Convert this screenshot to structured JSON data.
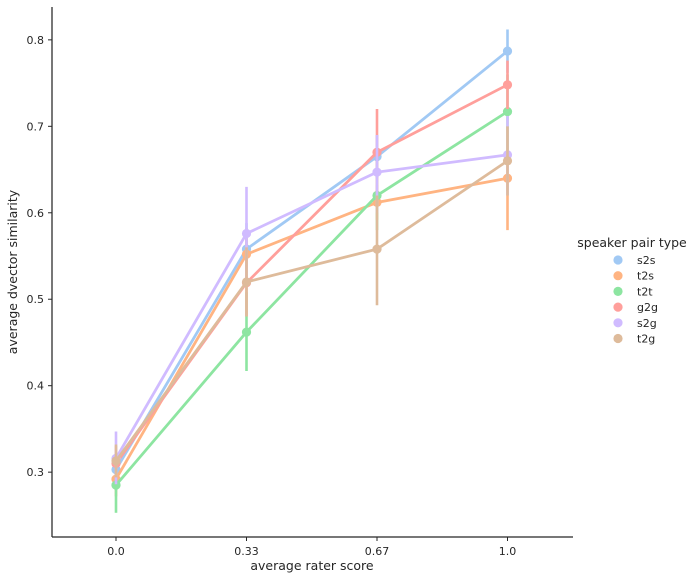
{
  "chart_data": {
    "type": "line",
    "categories": [
      "0.0",
      "0.33",
      "0.67",
      "1.0"
    ],
    "xlabel": "average rater score",
    "ylabel": "average dvector similarity",
    "ylim": [
      0.225,
      0.838
    ],
    "yticks": [
      0.3,
      0.4,
      0.5,
      0.6,
      0.7,
      0.8
    ],
    "yticklabels": [
      "0.3",
      "0.4",
      "0.5",
      "0.6",
      "0.7",
      "0.8"
    ],
    "grid": false,
    "legend": {
      "title": "speaker pair type",
      "placement": "center-right"
    },
    "series": [
      {
        "name": "s2s",
        "color": "#a1c9f4",
        "values": [
          0.303,
          0.558,
          0.665,
          0.787
        ],
        "ci": [
          [
            0.29,
            0.316
          ],
          [
            0.53,
            0.588
          ],
          [
            0.64,
            0.69
          ],
          [
            0.762,
            0.812
          ]
        ]
      },
      {
        "name": "t2s",
        "color": "#ffb482",
        "values": [
          0.292,
          0.552,
          0.612,
          0.64
        ],
        "ci": [
          [
            0.272,
            0.312
          ],
          [
            0.522,
            0.582
          ],
          [
            0.592,
            0.632
          ],
          [
            0.58,
            0.7
          ]
        ]
      },
      {
        "name": "t2t",
        "color": "#8de5a1",
        "values": [
          0.285,
          0.462,
          0.62,
          0.717
        ],
        "ci": [
          [
            0.253,
            0.316
          ],
          [
            0.417,
            0.508
          ],
          [
            0.58,
            0.66
          ],
          [
            0.67,
            0.76
          ]
        ]
      },
      {
        "name": "g2g",
        "color": "#ff9f9b",
        "values": [
          0.31,
          0.519,
          0.67,
          0.748
        ],
        "ci": [
          [
            0.292,
            0.33
          ],
          [
            0.48,
            0.56
          ],
          [
            0.622,
            0.72
          ],
          [
            0.72,
            0.776
          ]
        ]
      },
      {
        "name": "s2g",
        "color": "#d0bbff",
        "values": [
          0.316,
          0.576,
          0.647,
          0.667
        ],
        "ci": [
          [
            0.286,
            0.347
          ],
          [
            0.522,
            0.63
          ],
          [
            0.6,
            0.69
          ],
          [
            0.62,
            0.712
          ]
        ]
      },
      {
        "name": "t2g",
        "color": "#debb9b",
        "values": [
          0.313,
          0.52,
          0.558,
          0.66
        ],
        "ci": [
          [
            0.294,
            0.332
          ],
          [
            0.48,
            0.56
          ],
          [
            0.493,
            0.62
          ],
          [
            0.62,
            0.7
          ]
        ]
      }
    ]
  }
}
